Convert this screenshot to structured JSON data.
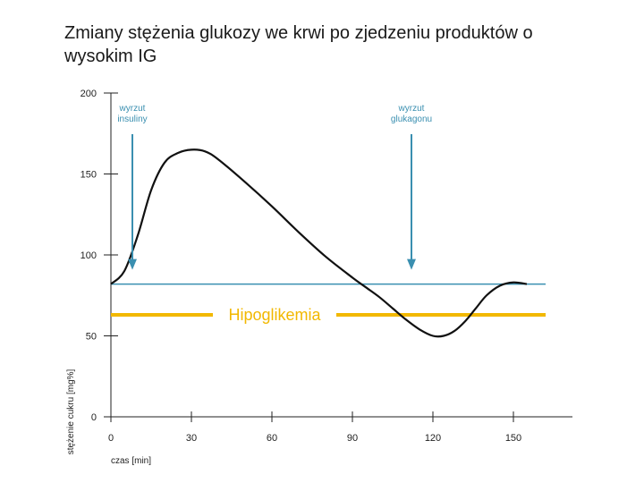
{
  "chart_data": {
    "type": "line",
    "title": "Zmiany stężenia glukozy we krwi po zjedzeniu produktów o wysokim IG",
    "xlabel": "czas [min]",
    "ylabel": "stężenie cukru [mg%]",
    "xlim": [
      0,
      170
    ],
    "ylim": [
      0,
      200
    ],
    "x_ticks": [
      0,
      30,
      60,
      90,
      120,
      150
    ],
    "y_ticks": [
      0,
      50,
      100,
      150,
      200
    ],
    "grid": false,
    "series": [
      {
        "color": "#111111",
        "x": [
          0,
          5,
          10,
          15,
          20,
          25,
          30,
          35,
          40,
          50,
          60,
          70,
          80,
          90,
          95,
          100,
          105,
          110,
          115,
          120,
          124,
          128,
          132,
          136,
          140,
          145,
          150,
          155
        ],
        "y": [
          82,
          90,
          112,
          140,
          157,
          163,
          165,
          164,
          159,
          145,
          130,
          114,
          99,
          86,
          80,
          74,
          67,
          60,
          54,
          50,
          50,
          53,
          59,
          67,
          75,
          81,
          83,
          82
        ]
      }
    ],
    "reference_lines": [
      {
        "y": 82,
        "color": "#3a8fb0",
        "x_range": [
          0,
          160
        ]
      },
      {
        "y": 63,
        "color": "#f2b800",
        "x_range": [
          0,
          160
        ],
        "label": "Hipoglikemia"
      }
    ],
    "annotations": [
      {
        "text_lines": [
          "wyrzut",
          "insuliny"
        ],
        "arrow_x": 8,
        "arrow_y": 93,
        "color": "#3a8fb0"
      },
      {
        "text_lines": [
          "wyrzut",
          "glukagonu"
        ],
        "arrow_x": 112,
        "arrow_y": 93,
        "color": "#3a8fb0"
      }
    ]
  }
}
